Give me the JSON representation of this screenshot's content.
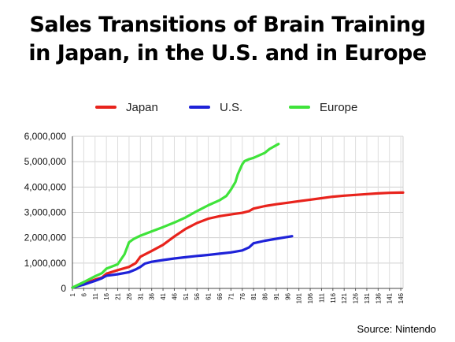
{
  "title": {
    "line1": "Sales Transitions of Brain Training",
    "line2": "in Japan, in the U.S. and in Europe"
  },
  "source": "Source: Nintendo",
  "chart_data": {
    "type": "line",
    "title": "Sales Transitions of Brain Training in Japan, in the U.S. and in Europe",
    "xlabel": "",
    "ylabel": "",
    "x_ticks": [
      "1",
      "6",
      "11",
      "16",
      "21",
      "26",
      "31",
      "36",
      "41",
      "46",
      "51",
      "56",
      "61",
      "66",
      "71",
      "76",
      "81",
      "86",
      "91",
      "96",
      "101",
      "106",
      "111",
      "116",
      "121",
      "126",
      "131",
      "136",
      "141",
      "146"
    ],
    "y_ticks": [
      "0",
      "1,000,000",
      "2,000,000",
      "3,000,000",
      "4,000,000",
      "5,000,000",
      "6,000,000"
    ],
    "xlim": [
      1,
      147
    ],
    "ylim": [
      0,
      6000000
    ],
    "grid": true,
    "legend_position": "top",
    "series": [
      {
        "name": "Japan",
        "color": "#e8231c",
        "x": [
          1,
          6,
          11,
          14,
          16,
          21,
          26,
          29,
          31,
          36,
          41,
          46,
          51,
          56,
          61,
          66,
          71,
          76,
          79,
          81,
          86,
          91,
          96,
          101,
          106,
          111,
          116,
          121,
          126,
          131,
          136,
          141,
          146,
          147
        ],
        "y": [
          30000,
          180000,
          350000,
          430000,
          580000,
          720000,
          850000,
          1000000,
          1250000,
          1480000,
          1720000,
          2050000,
          2350000,
          2580000,
          2750000,
          2850000,
          2920000,
          2980000,
          3050000,
          3150000,
          3250000,
          3320000,
          3380000,
          3440000,
          3500000,
          3560000,
          3620000,
          3660000,
          3690000,
          3720000,
          3750000,
          3770000,
          3780000,
          3780000
        ]
      },
      {
        "name": "U.S.",
        "color": "#1e22d8",
        "x": [
          1,
          6,
          11,
          14,
          16,
          21,
          26,
          29,
          31,
          33,
          36,
          41,
          46,
          51,
          56,
          61,
          66,
          71,
          76,
          79,
          81,
          86,
          91,
          96,
          98
        ],
        "y": [
          30000,
          150000,
          300000,
          400000,
          500000,
          560000,
          640000,
          750000,
          850000,
          980000,
          1050000,
          1120000,
          1180000,
          1230000,
          1280000,
          1320000,
          1370000,
          1420000,
          1500000,
          1620000,
          1780000,
          1880000,
          1960000,
          2030000,
          2060000
        ]
      },
      {
        "name": "Europe",
        "color": "#3fe33a",
        "x": [
          1,
          6,
          11,
          14,
          16,
          21,
          24,
          26,
          28,
          31,
          36,
          41,
          46,
          51,
          56,
          61,
          66,
          69,
          71,
          73,
          74,
          76,
          77,
          79,
          81,
          86,
          88,
          91,
          92
        ],
        "y": [
          30000,
          250000,
          480000,
          600000,
          780000,
          950000,
          1350000,
          1820000,
          1950000,
          2080000,
          2250000,
          2420000,
          2600000,
          2800000,
          3050000,
          3280000,
          3480000,
          3650000,
          3900000,
          4200000,
          4500000,
          4900000,
          5020000,
          5100000,
          5150000,
          5350000,
          5500000,
          5650000,
          5700000
        ]
      }
    ]
  }
}
